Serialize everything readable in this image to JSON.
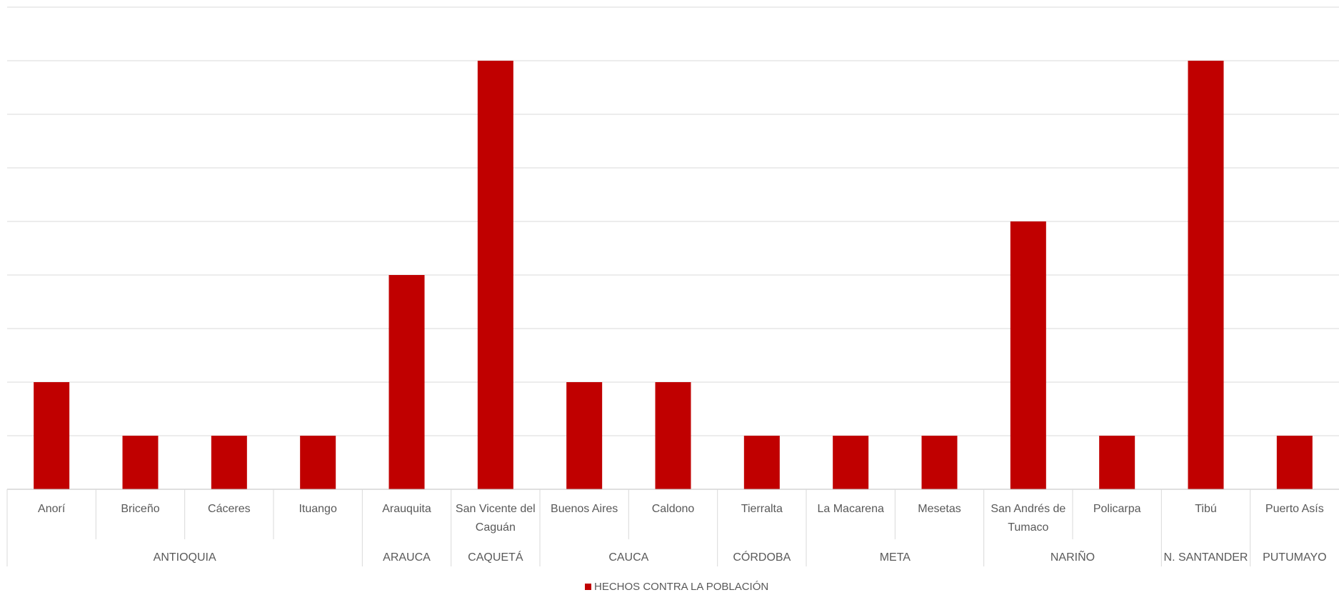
{
  "chart_data": {
    "type": "bar",
    "categories": [
      {
        "label": "Anorí",
        "group": "ANTIOQUIA"
      },
      {
        "label": "Briceño",
        "group": "ANTIOQUIA"
      },
      {
        "label": "Cáceres",
        "group": "ANTIOQUIA"
      },
      {
        "label": "Ituango",
        "group": "ANTIOQUIA"
      },
      {
        "label": "Arauquita",
        "group": "ARAUCA"
      },
      {
        "label": "San Vicente del Caguán",
        "group": "CAQUETÁ"
      },
      {
        "label": "Buenos Aires",
        "group": "CAUCA"
      },
      {
        "label": "Caldono",
        "group": "CAUCA"
      },
      {
        "label": "Tierralta",
        "group": "CÓRDOBA"
      },
      {
        "label": "La Macarena",
        "group": "META"
      },
      {
        "label": "Mesetas",
        "group": "META"
      },
      {
        "label": "San Andrés de Tumaco",
        "group": "NARIÑO"
      },
      {
        "label": "Policarpa",
        "group": "NARIÑO"
      },
      {
        "label": "Tibú",
        "group": "N. SANTANDER"
      },
      {
        "label": "Puerto Asís",
        "group": "PUTUMAYO"
      }
    ],
    "groups": [
      "ANTIOQUIA",
      "ARAUCA",
      "CAQUETÁ",
      "CAUCA",
      "CÓRDOBA",
      "META",
      "NARIÑO",
      "N. SANTANDER",
      "PUTUMAYO"
    ],
    "series": [
      {
        "name": "HECHOS CONTRA LA POBLACIÓN",
        "color": "#C00000",
        "values": [
          2,
          1,
          1,
          1,
          4,
          8,
          2,
          2,
          1,
          1,
          1,
          5,
          1,
          8,
          1
        ]
      }
    ],
    "ylim": [
      0,
      9
    ],
    "y_gridlines": [
      0,
      1,
      2,
      3,
      4,
      5,
      6,
      7,
      8,
      9
    ],
    "y_tick_labels_shown": false,
    "grid": true,
    "legend_position": "bottom-center"
  }
}
